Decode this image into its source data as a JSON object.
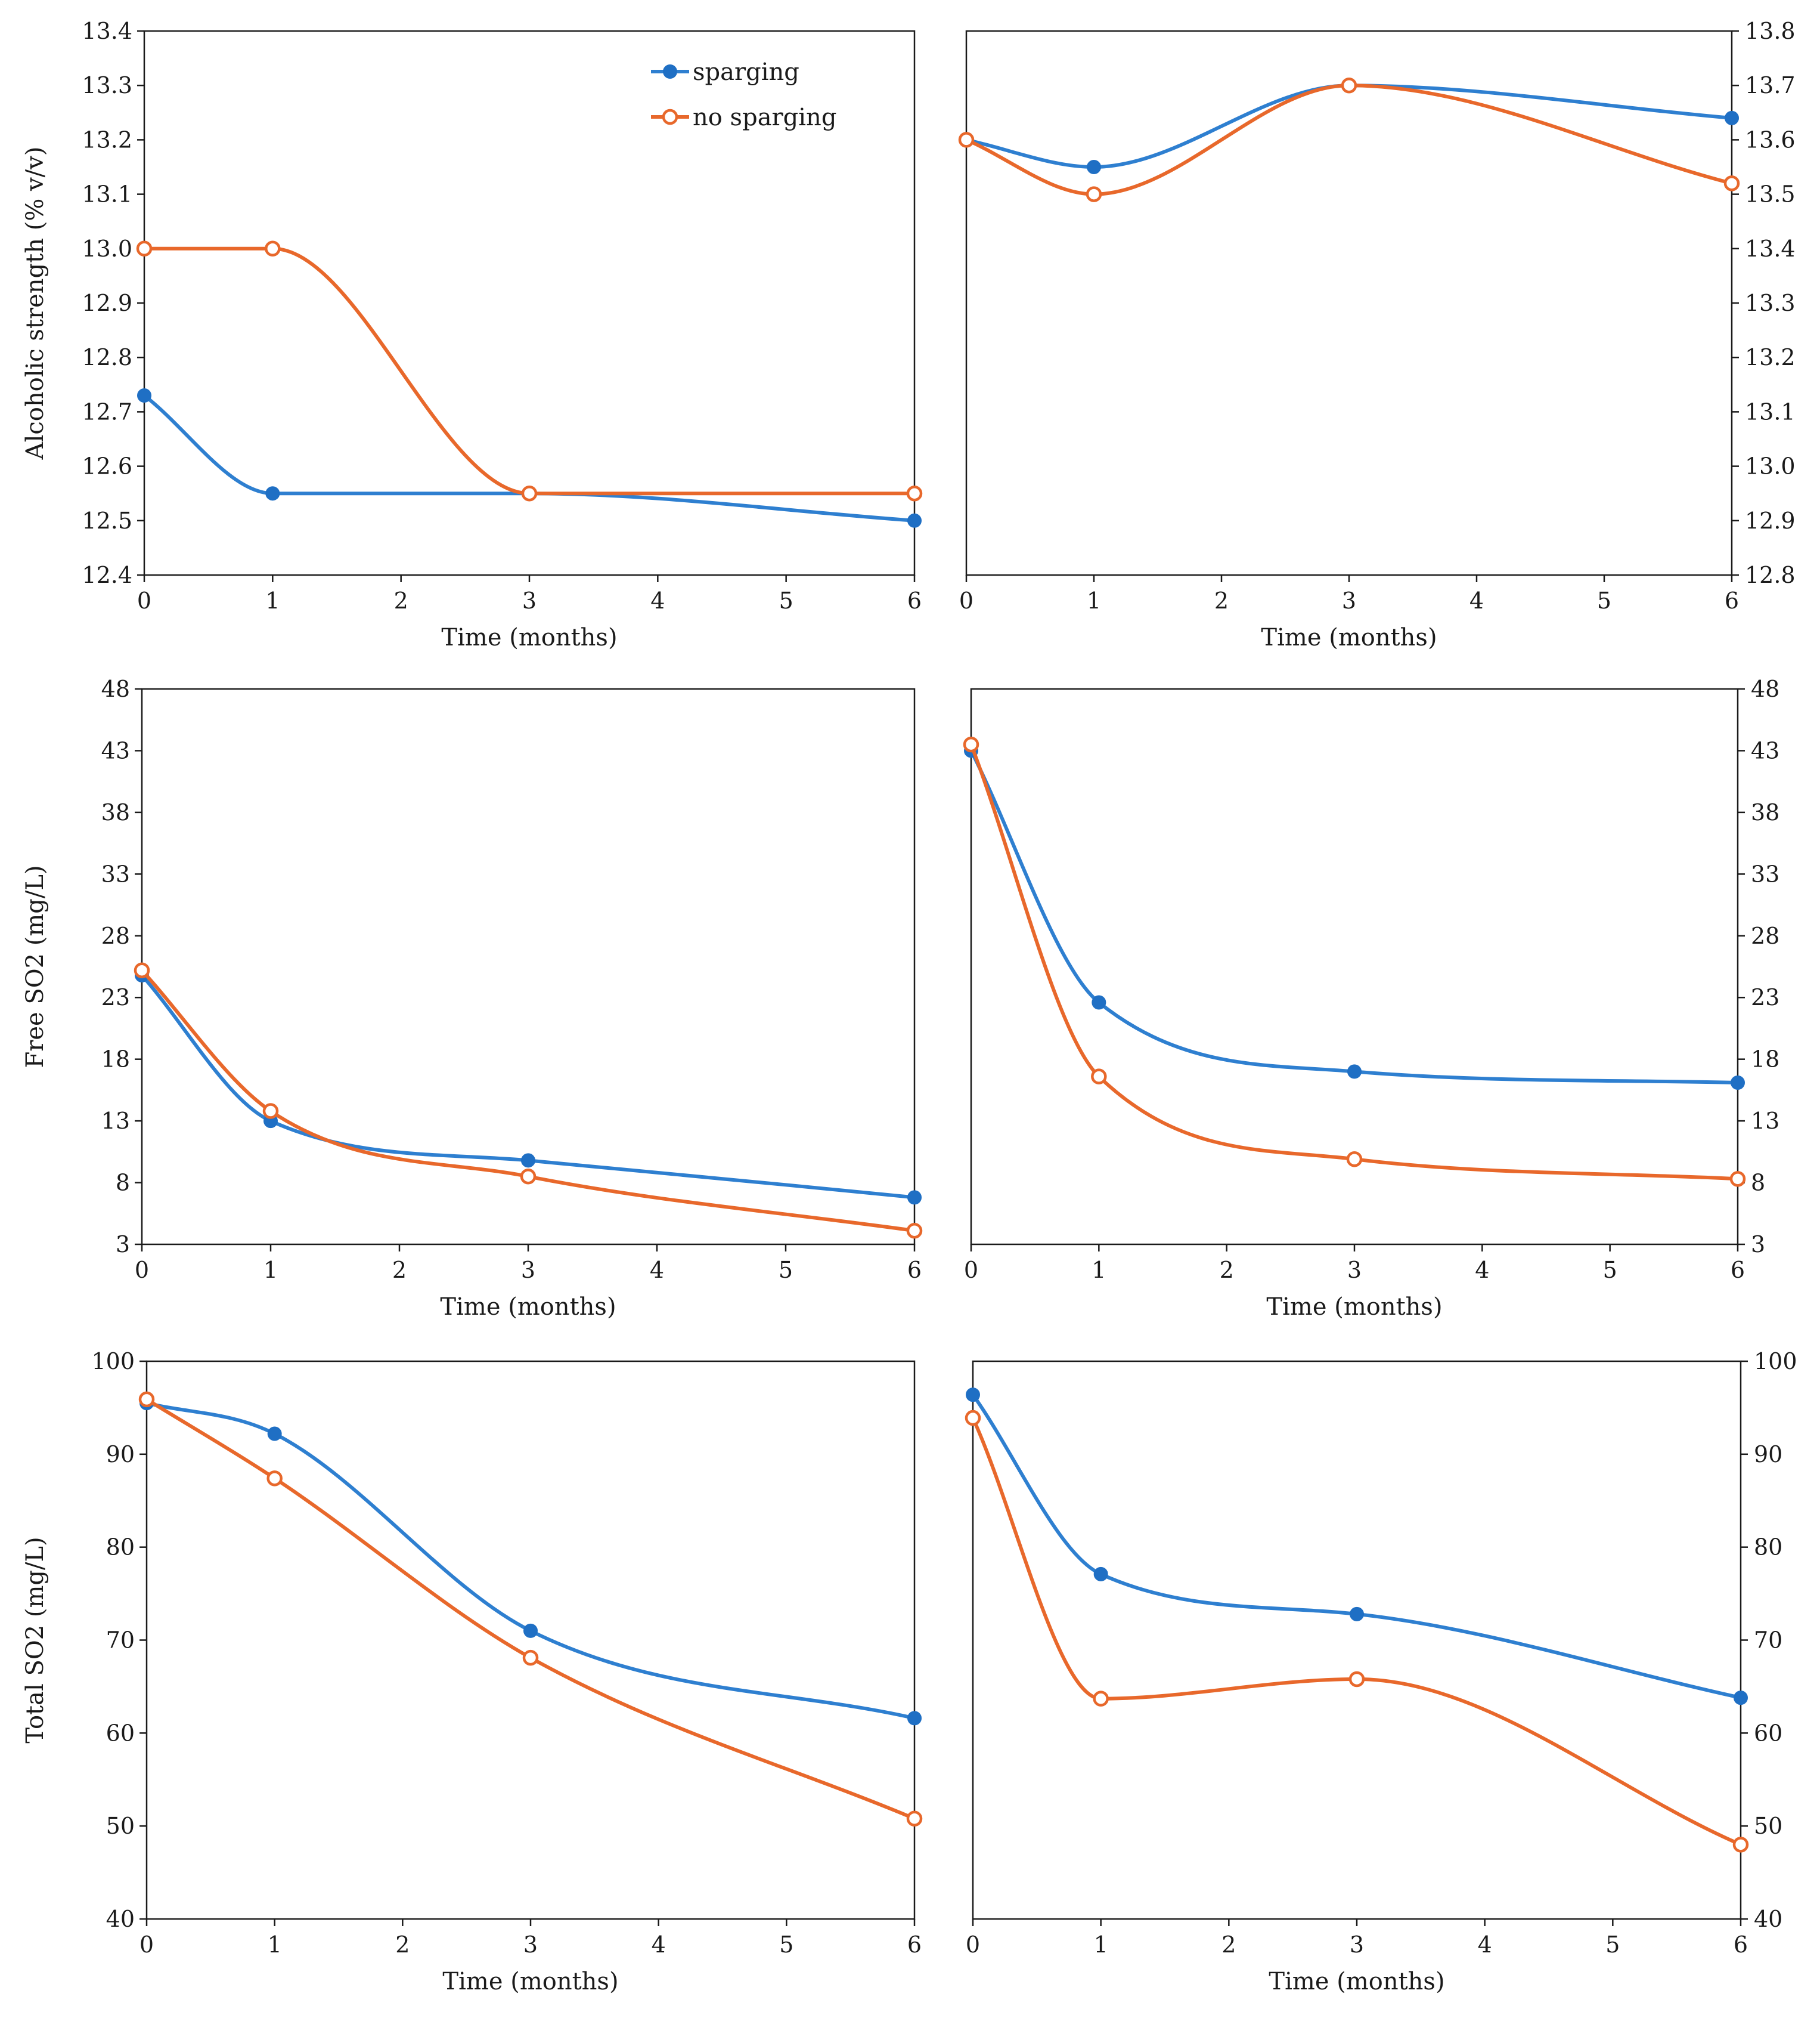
{
  "colors": {
    "sparging": "#2e7fd0",
    "no_sparging": "#e8682b",
    "marker_blue": "#1f6fc4",
    "marker_orange": "#e8682b"
  },
  "legend": {
    "sparging": "sparging",
    "no_sparging": "no sparging"
  },
  "chart_data": [
    {
      "id": "alcohol-left",
      "type": "line",
      "title": "",
      "xlabel": "Time (months)",
      "ylabel": "Alcoholic strength (% v/v)",
      "xlim": [
        0,
        6
      ],
      "xticks": [
        0,
        1,
        2,
        3,
        4,
        5,
        6
      ],
      "ylim": [
        12.4,
        13.4
      ],
      "yticks": [
        "12.4",
        "12.5",
        "12.6",
        "12.7",
        "12.8",
        "12.9",
        "13.0",
        "13.1",
        "13.2",
        "13.3",
        "13.4"
      ],
      "y_axis_side": "left",
      "legend": "top-center",
      "series": [
        {
          "name": "sparging",
          "x": [
            0,
            1,
            3,
            6
          ],
          "values": [
            12.73,
            12.55,
            12.55,
            12.5
          ]
        },
        {
          "name": "no sparging",
          "x": [
            0,
            1,
            3,
            6
          ],
          "values": [
            13.0,
            13.0,
            12.55,
            12.55
          ]
        }
      ]
    },
    {
      "id": "alcohol-right",
      "type": "line",
      "title": "",
      "xlabel": "Time (months)",
      "ylabel": "",
      "xlim": [
        0,
        6
      ],
      "xticks": [
        0,
        1,
        2,
        3,
        4,
        5,
        6
      ],
      "ylim": [
        12.8,
        13.8
      ],
      "yticks": [
        "12.8",
        "12.9",
        "13.0",
        "13.1",
        "13.2",
        "13.3",
        "13.4",
        "13.5",
        "13.6",
        "13.7",
        "13.8"
      ],
      "y_axis_side": "right",
      "series": [
        {
          "name": "sparging",
          "x": [
            0,
            1,
            3,
            6
          ],
          "values": [
            13.6,
            13.55,
            13.7,
            13.64
          ]
        },
        {
          "name": "no sparging",
          "x": [
            0,
            1,
            3,
            6
          ],
          "values": [
            13.6,
            13.5,
            13.7,
            13.52
          ]
        }
      ]
    },
    {
      "id": "free-so2-left",
      "type": "line",
      "title": "",
      "xlabel": "Time (months)",
      "ylabel": "Free SO2 (mg/L)",
      "xlim": [
        0,
        6
      ],
      "xticks": [
        0,
        1,
        2,
        3,
        4,
        5,
        6
      ],
      "ylim": [
        3,
        48
      ],
      "yticks": [
        "3",
        "8",
        "13",
        "18",
        "23",
        "28",
        "33",
        "38",
        "43",
        "48"
      ],
      "y_axis_side": "left",
      "series": [
        {
          "name": "sparging",
          "x": [
            0,
            1,
            3,
            6
          ],
          "values": [
            24.8,
            13.0,
            9.8,
            6.8
          ]
        },
        {
          "name": "no sparging",
          "x": [
            0,
            1,
            3,
            6
          ],
          "values": [
            25.2,
            13.8,
            8.5,
            4.1
          ]
        }
      ]
    },
    {
      "id": "free-so2-right",
      "type": "line",
      "title": "",
      "xlabel": "Time (months)",
      "ylabel": "",
      "xlim": [
        0,
        6
      ],
      "xticks": [
        0,
        1,
        2,
        3,
        4,
        5,
        6
      ],
      "ylim": [
        3,
        48
      ],
      "yticks": [
        "3",
        "8",
        "13",
        "18",
        "23",
        "28",
        "33",
        "38",
        "43",
        "48"
      ],
      "y_axis_side": "right",
      "series": [
        {
          "name": "sparging",
          "x": [
            0,
            1,
            3,
            6
          ],
          "values": [
            43.0,
            22.6,
            17.0,
            16.1
          ]
        },
        {
          "name": "no sparging",
          "x": [
            0,
            1,
            3,
            6
          ],
          "values": [
            43.5,
            16.6,
            9.9,
            8.3
          ]
        }
      ]
    },
    {
      "id": "total-so2-left",
      "type": "line",
      "title": "",
      "xlabel": "Time (months)",
      "ylabel": "Total SO2 (mg/L)",
      "xlim": [
        0,
        6
      ],
      "xticks": [
        0,
        1,
        2,
        3,
        4,
        5,
        6
      ],
      "ylim": [
        40,
        100
      ],
      "yticks": [
        "40",
        "50",
        "60",
        "70",
        "80",
        "90",
        "100"
      ],
      "y_axis_side": "left",
      "series": [
        {
          "name": "sparging",
          "x": [
            0,
            1,
            3,
            6
          ],
          "values": [
            95.5,
            92.2,
            71.0,
            61.6
          ]
        },
        {
          "name": "no sparging",
          "x": [
            0,
            1,
            3,
            6
          ],
          "values": [
            95.9,
            87.4,
            68.1,
            50.8
          ]
        }
      ]
    },
    {
      "id": "total-so2-right",
      "type": "line",
      "title": "",
      "xlabel": "Time (months)",
      "ylabel": "",
      "xlim": [
        0,
        6
      ],
      "xticks": [
        0,
        1,
        2,
        3,
        4,
        5,
        6
      ],
      "ylim": [
        40,
        100
      ],
      "yticks": [
        "40",
        "50",
        "60",
        "70",
        "80",
        "90",
        "100"
      ],
      "y_axis_side": "right",
      "series": [
        {
          "name": "sparging",
          "x": [
            0,
            1,
            3,
            6
          ],
          "values": [
            96.4,
            77.1,
            72.8,
            63.8
          ]
        },
        {
          "name": "no sparging",
          "x": [
            0,
            1,
            3,
            6
          ],
          "values": [
            93.9,
            63.7,
            65.8,
            48.0
          ]
        }
      ]
    }
  ]
}
